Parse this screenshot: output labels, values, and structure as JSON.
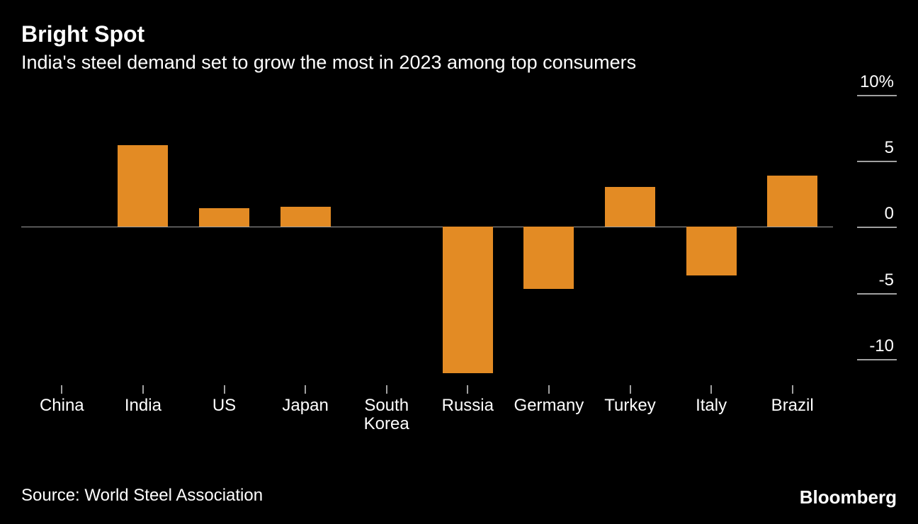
{
  "title": "Bright Spot",
  "subtitle": "India's steel demand set to grow the most in 2023 among top consumers",
  "source": "Source: World Steel Association",
  "brand": "Bloomberg",
  "chart": {
    "type": "bar",
    "categories": [
      "China",
      "India",
      "US",
      "Japan",
      "South Korea",
      "Russia",
      "Germany",
      "Turkey",
      "Italy",
      "Brazil"
    ],
    "values": [
      0.0,
      6.2,
      1.4,
      1.5,
      0.0,
      -11.1,
      -4.7,
      3.0,
      -3.7,
      3.9
    ],
    "bar_color": "#e38b24",
    "y_min": -12,
    "y_max": 10,
    "y_ticks": [
      -10,
      -5,
      0,
      5,
      10
    ],
    "y_tick_labels": [
      "-10",
      "-5",
      "0",
      "5",
      "10%"
    ],
    "background_color": "#000000",
    "text_color": "#ffffff",
    "grid_color": "#a0a0a0",
    "bar_width_ratio": 0.62,
    "title_fontsize": 32,
    "subtitle_fontsize": 27,
    "axis_fontsize": 24
  }
}
